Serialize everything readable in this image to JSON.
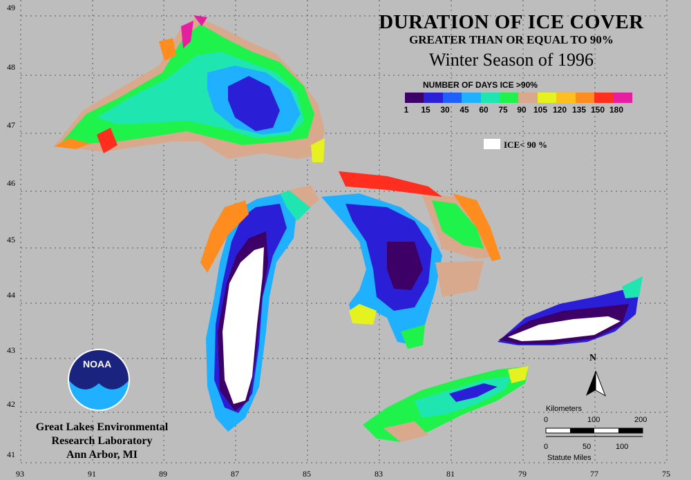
{
  "title": "DURATION OF ICE COVER",
  "subtitle": "GREATER THAN OR EQUAL TO 90%",
  "season": "Winter Season of 1996",
  "legend": {
    "title": "NUMBER OF DAYS ICE >90%",
    "colors": [
      "#3d0066",
      "#2a1fd6",
      "#1f5eff",
      "#1fb0ff",
      "#1fe6b0",
      "#1ff24a",
      "#d8a98c",
      "#e6f21f",
      "#ffc01f",
      "#ff8c1f",
      "#ff2e1f",
      "#e61fa0"
    ],
    "ticks": [
      "1",
      "15",
      "30",
      "45",
      "60",
      "75",
      "90",
      "105",
      "120",
      "135",
      "150",
      "180"
    ],
    "ice_label": "ICE< 90 %"
  },
  "axes": {
    "lon_labels": [
      "93",
      "91",
      "89",
      "87",
      "85",
      "83",
      "81",
      "79",
      "77",
      "75"
    ],
    "lat_labels": [
      "49",
      "48",
      "47",
      "46",
      "45",
      "44",
      "43",
      "42",
      "41"
    ]
  },
  "north_label": "N",
  "logo_text": "NOAA",
  "institution": [
    "Great Lakes Environmental",
    "Research Laboratory",
    "Ann Arbor, MI"
  ],
  "scale": {
    "km_label": "Kilometers",
    "km_ticks": [
      "0",
      "100",
      "200"
    ],
    "mi_ticks": [
      "0",
      "50",
      "100"
    ],
    "mi_label": "Statute Miles"
  }
}
